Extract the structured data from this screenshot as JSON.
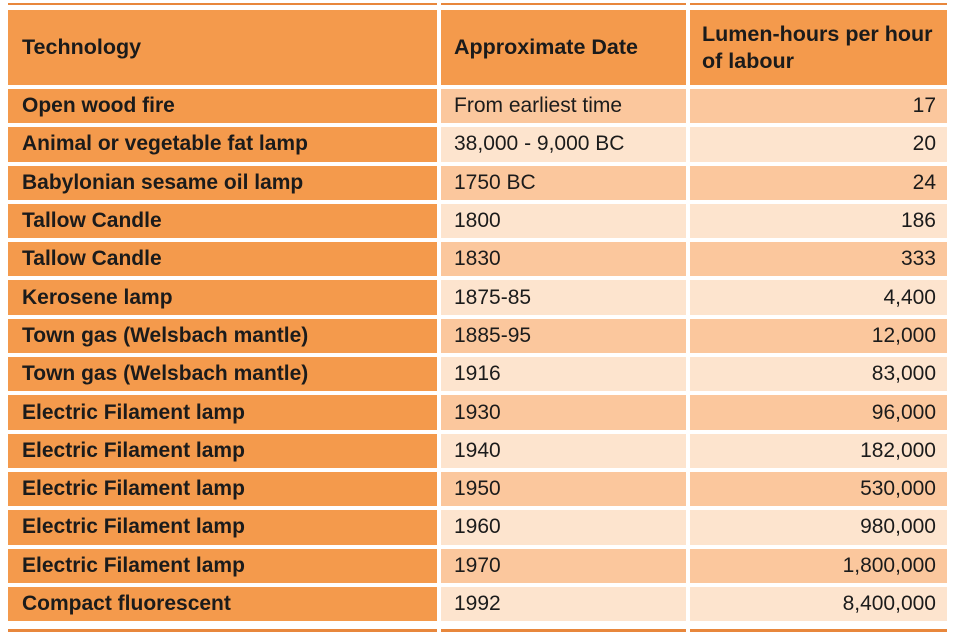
{
  "table": {
    "columns": [
      {
        "label": "Technology"
      },
      {
        "label": "Approximate Date"
      },
      {
        "label": "Lumen-hours per hour of labour"
      }
    ],
    "rows": [
      {
        "technology": "Open wood fire",
        "date": "From earliest time",
        "lumen_hours": "17"
      },
      {
        "technology": "Animal or vegetable fat lamp",
        "date": "38,000 - 9,000 BC",
        "lumen_hours": "20"
      },
      {
        "technology": "Babylonian sesame oil lamp",
        "date": "1750 BC",
        "lumen_hours": "24"
      },
      {
        "technology": "Tallow Candle",
        "date": "1800",
        "lumen_hours": "186"
      },
      {
        "technology": "Tallow Candle",
        "date": "1830",
        "lumen_hours": "333"
      },
      {
        "technology": "Kerosene lamp",
        "date": "1875-85",
        "lumen_hours": "4,400"
      },
      {
        "technology": "Town gas (Welsbach mantle)",
        "date": "1885-95",
        "lumen_hours": "12,000"
      },
      {
        "technology": "Town gas (Welsbach mantle)",
        "date": "1916",
        "lumen_hours": "83,000"
      },
      {
        "technology": "Electric Filament lamp",
        "date": "1930",
        "lumen_hours": "96,000"
      },
      {
        "technology": "Electric Filament lamp",
        "date": "1940",
        "lumen_hours": "182,000"
      },
      {
        "technology": "Electric Filament lamp",
        "date": "1950",
        "lumen_hours": "530,000"
      },
      {
        "technology": "Electric Filament lamp",
        "date": "1960",
        "lumen_hours": "980,000"
      },
      {
        "technology": "Electric Filament lamp",
        "date": "1970",
        "lumen_hours": "1,800,000"
      },
      {
        "technology": "Compact fluorescent",
        "date": "1992",
        "lumen_hours": "8,400,000"
      }
    ]
  },
  "colors": {
    "cell_orange": "#f49a4c",
    "peach_dark": "#fbc79d",
    "peach_light": "#fde4ce",
    "border_line": "#e8873c",
    "text": "#1b1b1b"
  },
  "chart_data": {
    "type": "table",
    "title": "",
    "columns": [
      "Technology",
      "Approximate Date",
      "Lumen-hours per hour of labour"
    ],
    "rows": [
      [
        "Open wood fire",
        "From earliest time",
        17
      ],
      [
        "Animal or vegetable fat lamp",
        "38,000 - 9,000 BC",
        20
      ],
      [
        "Babylonian sesame oil lamp",
        "1750 BC",
        24
      ],
      [
        "Tallow Candle",
        "1800",
        186
      ],
      [
        "Tallow Candle",
        "1830",
        333
      ],
      [
        "Kerosene lamp",
        "1875-85",
        4400
      ],
      [
        "Town gas (Welsbach mantle)",
        "1885-95",
        12000
      ],
      [
        "Town gas (Welsbach mantle)",
        "1916",
        83000
      ],
      [
        "Electric Filament lamp",
        "1930",
        96000
      ],
      [
        "Electric Filament lamp",
        "1940",
        182000
      ],
      [
        "Electric Filament lamp",
        "1950",
        530000
      ],
      [
        "Electric Filament lamp",
        "1960",
        980000
      ],
      [
        "Electric Filament lamp",
        "1970",
        1800000
      ],
      [
        "Compact fluorescent",
        "1992",
        8400000
      ]
    ]
  }
}
